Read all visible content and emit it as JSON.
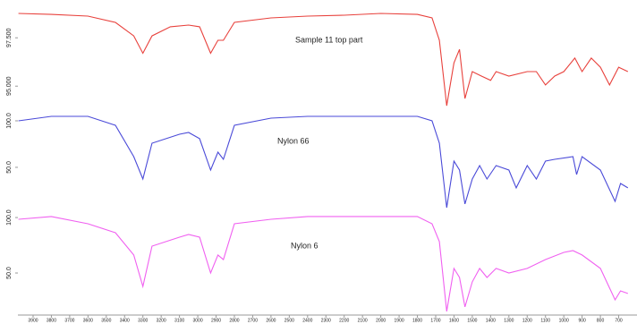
{
  "chart_data": [
    {
      "type": "line",
      "label": "Sample 11 top part",
      "color": "#e8413c",
      "x": [
        3980,
        3800,
        3600,
        3450,
        3350,
        3300,
        3250,
        3150,
        3050,
        2990,
        2930,
        2890,
        2860,
        2800,
        2600,
        2400,
        2200,
        2000,
        1800,
        1720,
        1680,
        1640,
        1600,
        1570,
        1540,
        1500,
        1450,
        1400,
        1370,
        1300,
        1200,
        1150,
        1100,
        1050,
        1000,
        940,
        900,
        850,
        800,
        750,
        700,
        650
      ],
      "values": [
        98.76,
        98.71,
        98.62,
        98.3,
        97.6,
        96.7,
        97.6,
        98.07,
        98.16,
        98.07,
        96.7,
        97.37,
        97.37,
        98.3,
        98.53,
        98.62,
        98.67,
        98.76,
        98.71,
        98.53,
        97.37,
        93.99,
        96.2,
        96.9,
        94.36,
        95.75,
        95.52,
        95.3,
        95.75,
        95.52,
        95.75,
        95.75,
        95.06,
        95.52,
        95.75,
        96.45,
        95.75,
        96.45,
        95.98,
        95.06,
        95.98,
        95.75
      ],
      "xlim": [
        3983,
        600
      ],
      "ylim": [
        93.9,
        98.9
      ],
      "yticks": [
        {
          "value": 97.5,
          "label": "97.500"
        },
        {
          "value": 95,
          "label": "95.000"
        }
      ]
    },
    {
      "type": "line",
      "label": "Nylon 66",
      "color": "#4a4ad8",
      "x": [
        3980,
        3800,
        3600,
        3450,
        3350,
        3300,
        3250,
        3100,
        3050,
        2990,
        2930,
        2890,
        2860,
        2800,
        2600,
        2400,
        2200,
        2000,
        1800,
        1720,
        1680,
        1640,
        1600,
        1570,
        1540,
        1500,
        1460,
        1420,
        1370,
        1300,
        1260,
        1200,
        1150,
        1100,
        1050,
        950,
        930,
        900,
        800,
        720,
        690,
        650
      ],
      "values": [
        100,
        104.8,
        104.8,
        95.2,
        61.5,
        37.5,
        75.9,
        85.6,
        87.5,
        80.8,
        47.1,
        66.3,
        58.6,
        95.2,
        102.9,
        104.8,
        104.8,
        104.8,
        104.8,
        100,
        75.9,
        6.7,
        56.7,
        47.1,
        10.6,
        37.5,
        51.9,
        37.5,
        51.9,
        47.1,
        27.9,
        51.9,
        37.5,
        56.7,
        58.6,
        61.5,
        42.3,
        61.5,
        47.1,
        13.4,
        32.7,
        27.9
      ],
      "xlim": [
        3983,
        600
      ],
      "ylim": [
        3.8,
        109.6
      ],
      "yticks": [
        {
          "value": 100,
          "label": "100.0"
        },
        {
          "value": 50,
          "label": "50.0"
        }
      ]
    },
    {
      "type": "line",
      "label": "Nylon 6",
      "color": "#f060f0",
      "x": [
        3980,
        3800,
        3600,
        3450,
        3350,
        3300,
        3250,
        3100,
        3050,
        2990,
        2930,
        2890,
        2860,
        2800,
        2600,
        2400,
        2200,
        2000,
        1800,
        1720,
        1680,
        1640,
        1600,
        1570,
        1540,
        1500,
        1460,
        1420,
        1370,
        1300,
        1200,
        1100,
        1000,
        950,
        900,
        800,
        720,
        690,
        650
      ],
      "values": [
        98.4,
        100.9,
        94.4,
        86.3,
        66.2,
        37.9,
        74.2,
        82.3,
        84.7,
        82.3,
        50.0,
        66.2,
        62.1,
        94.4,
        98.4,
        100.9,
        100.9,
        100.9,
        100.9,
        94.4,
        78.3,
        15.4,
        54.1,
        46.0,
        19.4,
        42.0,
        54.1,
        46.0,
        54.1,
        50.0,
        54.1,
        62.1,
        68.6,
        70.2,
        66.2,
        54.1,
        25.8,
        33.9,
        31.5
      ],
      "xlim": [
        3983,
        600
      ],
      "ylim": [
        13.7,
        106.5
      ],
      "yticks": [
        {
          "value": 100,
          "label": "100.0"
        },
        {
          "value": 50,
          "label": "50.0"
        }
      ],
      "xticks": [
        3900,
        3800,
        3700,
        3600,
        3500,
        3400,
        3300,
        3200,
        3100,
        3000,
        2900,
        2800,
        2700,
        2600,
        2500,
        2400,
        2300,
        2200,
        2100,
        2000,
        1900,
        1800,
        1700,
        1600,
        1500,
        1400,
        1300,
        1200,
        1100,
        1000,
        900,
        800,
        700
      ]
    }
  ]
}
